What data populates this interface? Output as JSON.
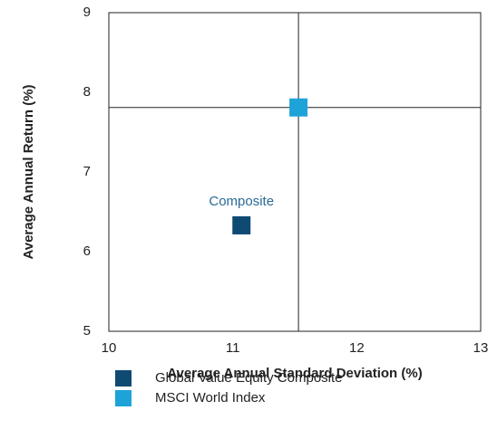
{
  "chart_data": {
    "type": "scatter",
    "xlabel": "Average Annual Standard Deviation (%)",
    "ylabel": "Average Annual Return (%)",
    "xlim": [
      10,
      13
    ],
    "xticks": [
      10,
      11,
      12,
      13
    ],
    "ylim": [
      5,
      9
    ],
    "yticks": [
      5,
      6,
      7,
      8,
      9
    ],
    "crosshair": true,
    "annotations": [
      {
        "text": "Composite",
        "color": "#2a6a96"
      }
    ],
    "series": [
      {
        "name": "Global Value Equity Composite",
        "color": "#0f4a73",
        "x": [
          11.07
        ],
        "values": [
          6.33
        ]
      },
      {
        "name": "MSCI World Index",
        "color": "#1ea3d9",
        "x": [
          11.53
        ],
        "values": [
          7.81
        ]
      }
    ]
  }
}
